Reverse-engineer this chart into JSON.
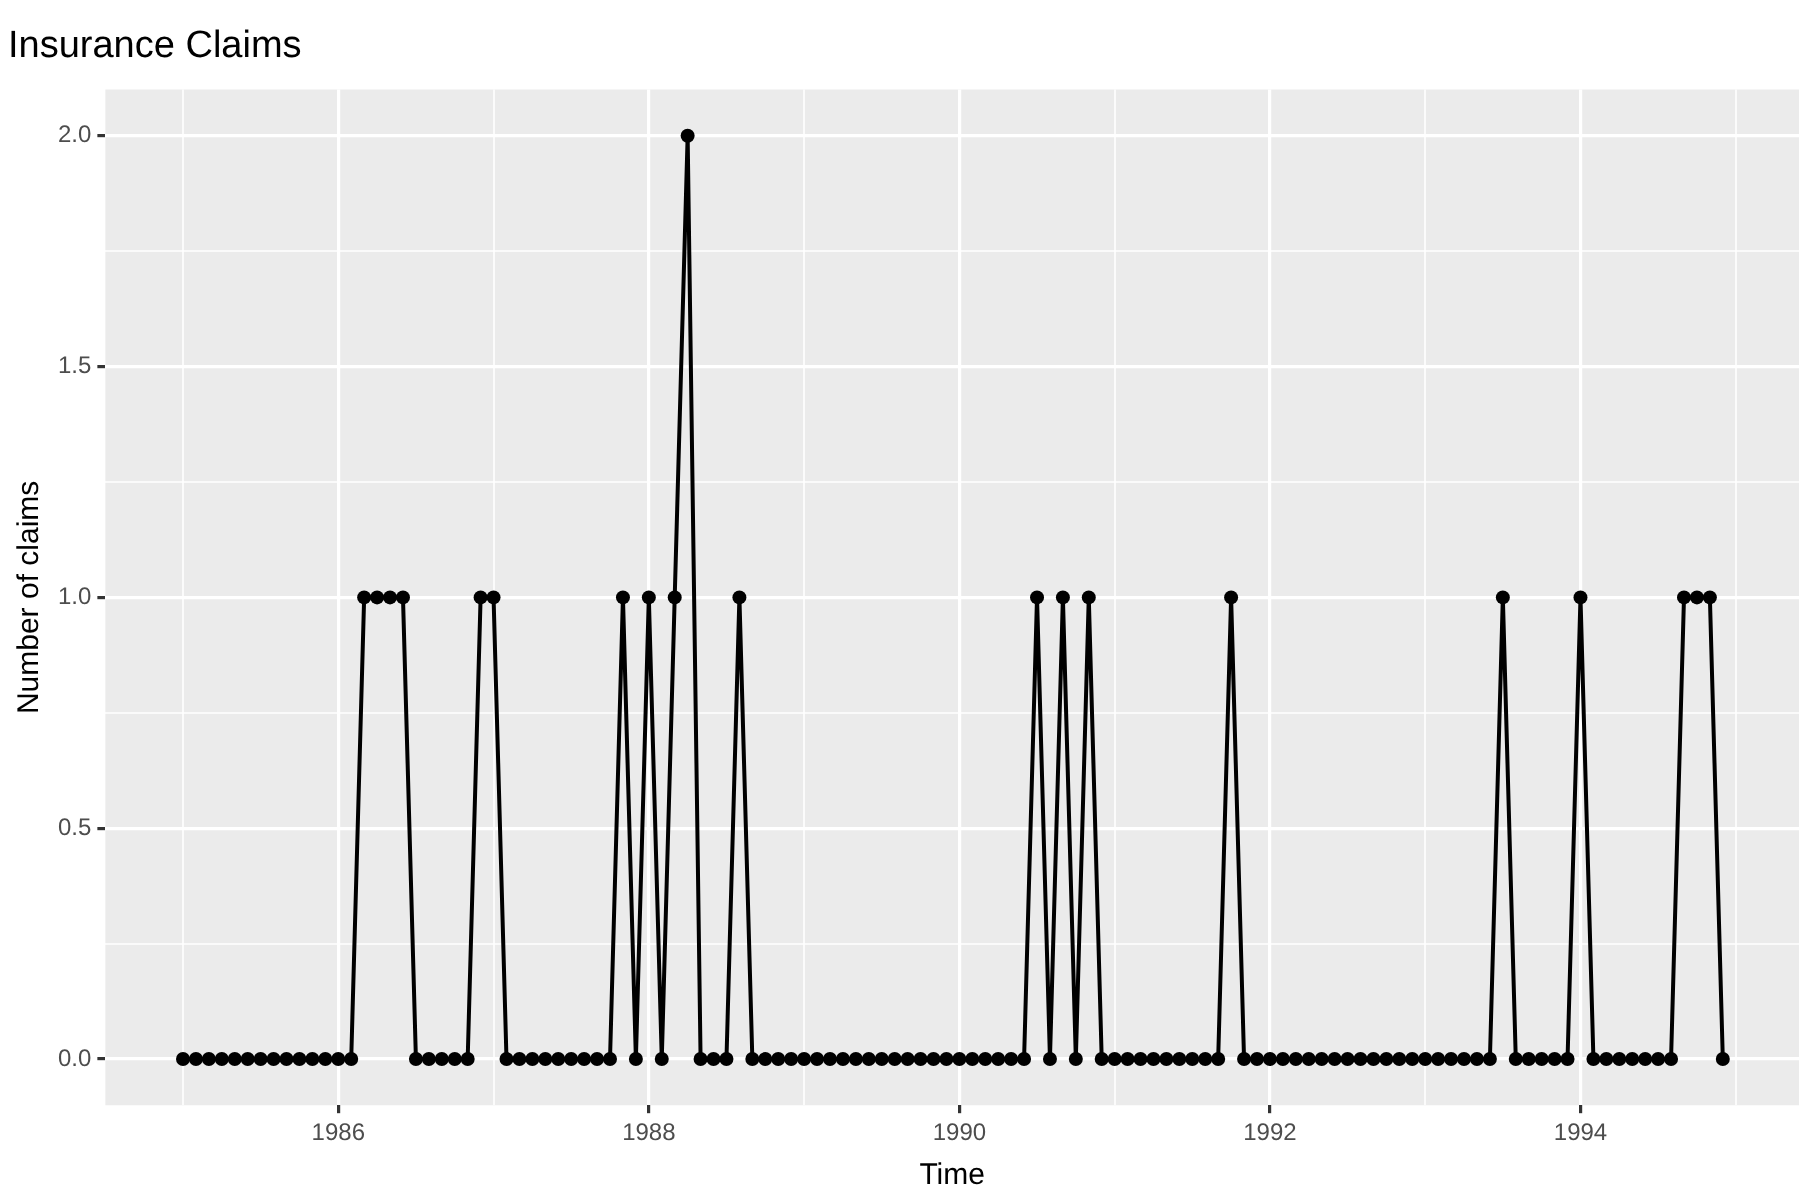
{
  "chart_data": {
    "type": "line",
    "title": "Insurance Claims",
    "xlabel": "Time",
    "ylabel": "Number of claims",
    "x": [
      "1985-01",
      "1985-02",
      "1985-03",
      "1985-04",
      "1985-05",
      "1985-06",
      "1985-07",
      "1985-08",
      "1985-09",
      "1985-10",
      "1985-11",
      "1985-12",
      "1986-01",
      "1986-02",
      "1986-03",
      "1986-04",
      "1986-05",
      "1986-06",
      "1986-07",
      "1986-08",
      "1986-09",
      "1986-10",
      "1986-11",
      "1986-12",
      "1987-01",
      "1987-02",
      "1987-03",
      "1987-04",
      "1987-05",
      "1987-06",
      "1987-07",
      "1987-08",
      "1987-09",
      "1987-10",
      "1987-11",
      "1987-12",
      "1988-01",
      "1988-02",
      "1988-03",
      "1988-04",
      "1988-05",
      "1988-06",
      "1988-07",
      "1988-08",
      "1988-09",
      "1988-10",
      "1988-11",
      "1988-12",
      "1989-01",
      "1989-02",
      "1989-03",
      "1989-04",
      "1989-05",
      "1989-06",
      "1989-07",
      "1989-08",
      "1989-09",
      "1989-10",
      "1989-11",
      "1989-12",
      "1990-01",
      "1990-02",
      "1990-03",
      "1990-04",
      "1990-05",
      "1990-06",
      "1990-07",
      "1990-08",
      "1990-09",
      "1990-10",
      "1990-11",
      "1990-12",
      "1991-01",
      "1991-02",
      "1991-03",
      "1991-04",
      "1991-05",
      "1991-06",
      "1991-07",
      "1991-08",
      "1991-09",
      "1991-10",
      "1991-11",
      "1991-12",
      "1992-01",
      "1992-02",
      "1992-03",
      "1992-04",
      "1992-05",
      "1992-06",
      "1992-07",
      "1992-08",
      "1992-09",
      "1992-10",
      "1992-11",
      "1992-12",
      "1993-01",
      "1993-02",
      "1993-03",
      "1993-04",
      "1993-05",
      "1993-06",
      "1993-07",
      "1993-08",
      "1993-09",
      "1993-10",
      "1993-11",
      "1993-12",
      "1994-01",
      "1994-02",
      "1994-03",
      "1994-04",
      "1994-05",
      "1994-06",
      "1994-07",
      "1994-08",
      "1994-09",
      "1994-10",
      "1994-11",
      "1994-12"
    ],
    "series": [
      {
        "color": "#000000",
        "values": [
          0,
          0,
          0,
          0,
          0,
          0,
          0,
          0,
          0,
          0,
          0,
          0,
          0,
          0,
          1,
          1,
          1,
          1,
          0,
          0,
          0,
          0,
          0,
          1,
          1,
          0,
          0,
          0,
          0,
          0,
          0,
          0,
          0,
          0,
          1,
          0,
          1,
          0,
          1,
          2,
          0,
          0,
          0,
          1,
          0,
          0,
          0,
          0,
          0,
          0,
          0,
          0,
          0,
          0,
          0,
          0,
          0,
          0,
          0,
          0,
          0,
          0,
          0,
          0,
          0,
          0,
          1,
          0,
          1,
          0,
          1,
          0,
          0,
          0,
          0,
          0,
          0,
          0,
          0,
          0,
          0,
          1,
          0,
          0,
          0,
          0,
          0,
          0,
          0,
          0,
          0,
          0,
          0,
          0,
          0,
          0,
          0,
          0,
          0,
          0,
          0,
          0,
          1,
          0,
          0,
          0,
          0,
          0,
          1,
          0,
          0,
          0,
          0,
          0,
          0,
          0,
          1,
          1,
          1,
          0
        ]
      }
    ],
    "xlim": [
      "1984-07-01",
      "1995-05-28"
    ],
    "xticks": [
      {
        "value": "1985",
        "label": null
      },
      "1986",
      {
        "value": "1987",
        "label": null
      },
      "1988",
      {
        "value": "1989",
        "label": null
      },
      "1990",
      {
        "value": "1991",
        "label": null
      },
      "1992",
      {
        "value": "1993",
        "label": null
      },
      "1994",
      {
        "value": "1995",
        "label": null
      }
    ],
    "ylim": [
      -0.1,
      2.1
    ],
    "yticks": [
      {
        "value": 0,
        "label": "0.0"
      },
      {
        "value": 0.25,
        "label": null
      },
      {
        "value": 0.5,
        "label": "0.5"
      },
      {
        "value": 0.75,
        "label": null
      },
      {
        "value": 1,
        "label": "1.0"
      },
      {
        "value": 1.25,
        "label": null
      },
      {
        "value": 1.5,
        "label": "1.5"
      },
      {
        "value": 1.75,
        "label": null
      },
      {
        "value": 2,
        "label": "2.0"
      }
    ],
    "grid": true,
    "marker": "circle",
    "line_style": "solid",
    "legend": false
  }
}
